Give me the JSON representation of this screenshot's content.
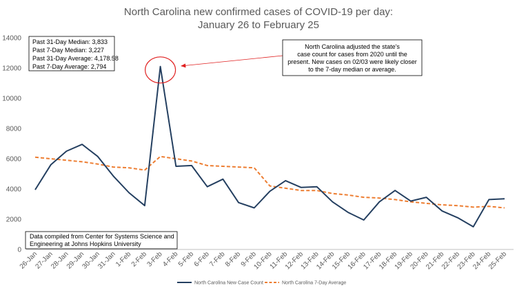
{
  "chart_data": {
    "type": "line",
    "title_lines": [
      "North Carolina new confirmed cases of COVID-19 per day:",
      "January 26 to February 25"
    ],
    "categories": [
      "26-Jan",
      "27-Jan",
      "28-Jan",
      "29-Jan",
      "30-Jan",
      "31-Jan",
      "1-Feb",
      "2-Feb",
      "3-Feb",
      "4-Feb",
      "5-Feb",
      "6-Feb",
      "7-Feb",
      "8-Feb",
      "9-Feb",
      "10-Feb",
      "11-Feb",
      "12-Feb",
      "13-Feb",
      "14-Feb",
      "15-Feb",
      "16-Feb",
      "17-Feb",
      "18-Feb",
      "19-Feb",
      "20-Feb",
      "21-Feb",
      "22-Feb",
      "23-Feb",
      "24-Feb",
      "25-Feb"
    ],
    "yticks": [
      "0",
      "2000",
      "4000",
      "6000",
      "8000",
      "10000",
      "12000",
      "14000"
    ],
    "ylim": [
      0,
      14000
    ],
    "grid": false,
    "legend_position": "bottom",
    "series": [
      {
        "name": "North Carolina New Case Count",
        "color": "#243f60",
        "style": "solid",
        "values": [
          3950,
          5600,
          6500,
          6950,
          6150,
          4850,
          3750,
          2900,
          12100,
          5500,
          5550,
          4150,
          4650,
          3100,
          2750,
          3850,
          4550,
          4100,
          4150,
          3150,
          2450,
          1950,
          3150,
          3900,
          3200,
          3450,
          2550,
          2100,
          1500,
          3300,
          3350
        ]
      },
      {
        "name": "North Carolina 7-Day Average",
        "color": "#ed7d31",
        "style": "dashed",
        "values": [
          6100,
          6000,
          5900,
          5800,
          5650,
          5450,
          5400,
          5250,
          6150,
          6000,
          5850,
          5550,
          5500,
          5450,
          5400,
          4200,
          4050,
          3900,
          3900,
          3700,
          3600,
          3450,
          3400,
          3300,
          3150,
          3050,
          2950,
          2900,
          2800,
          2850,
          2750
        ]
      }
    ],
    "stats_box": [
      "Past 31-Day Median: 3,833",
      "Past 7-Day Median: 3,227",
      "Past 31-Day Average: 4,178.58",
      "Past 7-Day Average: 2,794"
    ],
    "annotation": [
      "North Carolina adjusted the state's",
      "case count for cases from 2020 until the",
      "present. New cases on 02/03 were likely closer",
      "to the 7-day median or average."
    ],
    "source_note": [
      "Data compiled from Center for Systems Science and",
      "Engineering at Johns Hopkins University"
    ],
    "highlight_color": "#e02020"
  }
}
